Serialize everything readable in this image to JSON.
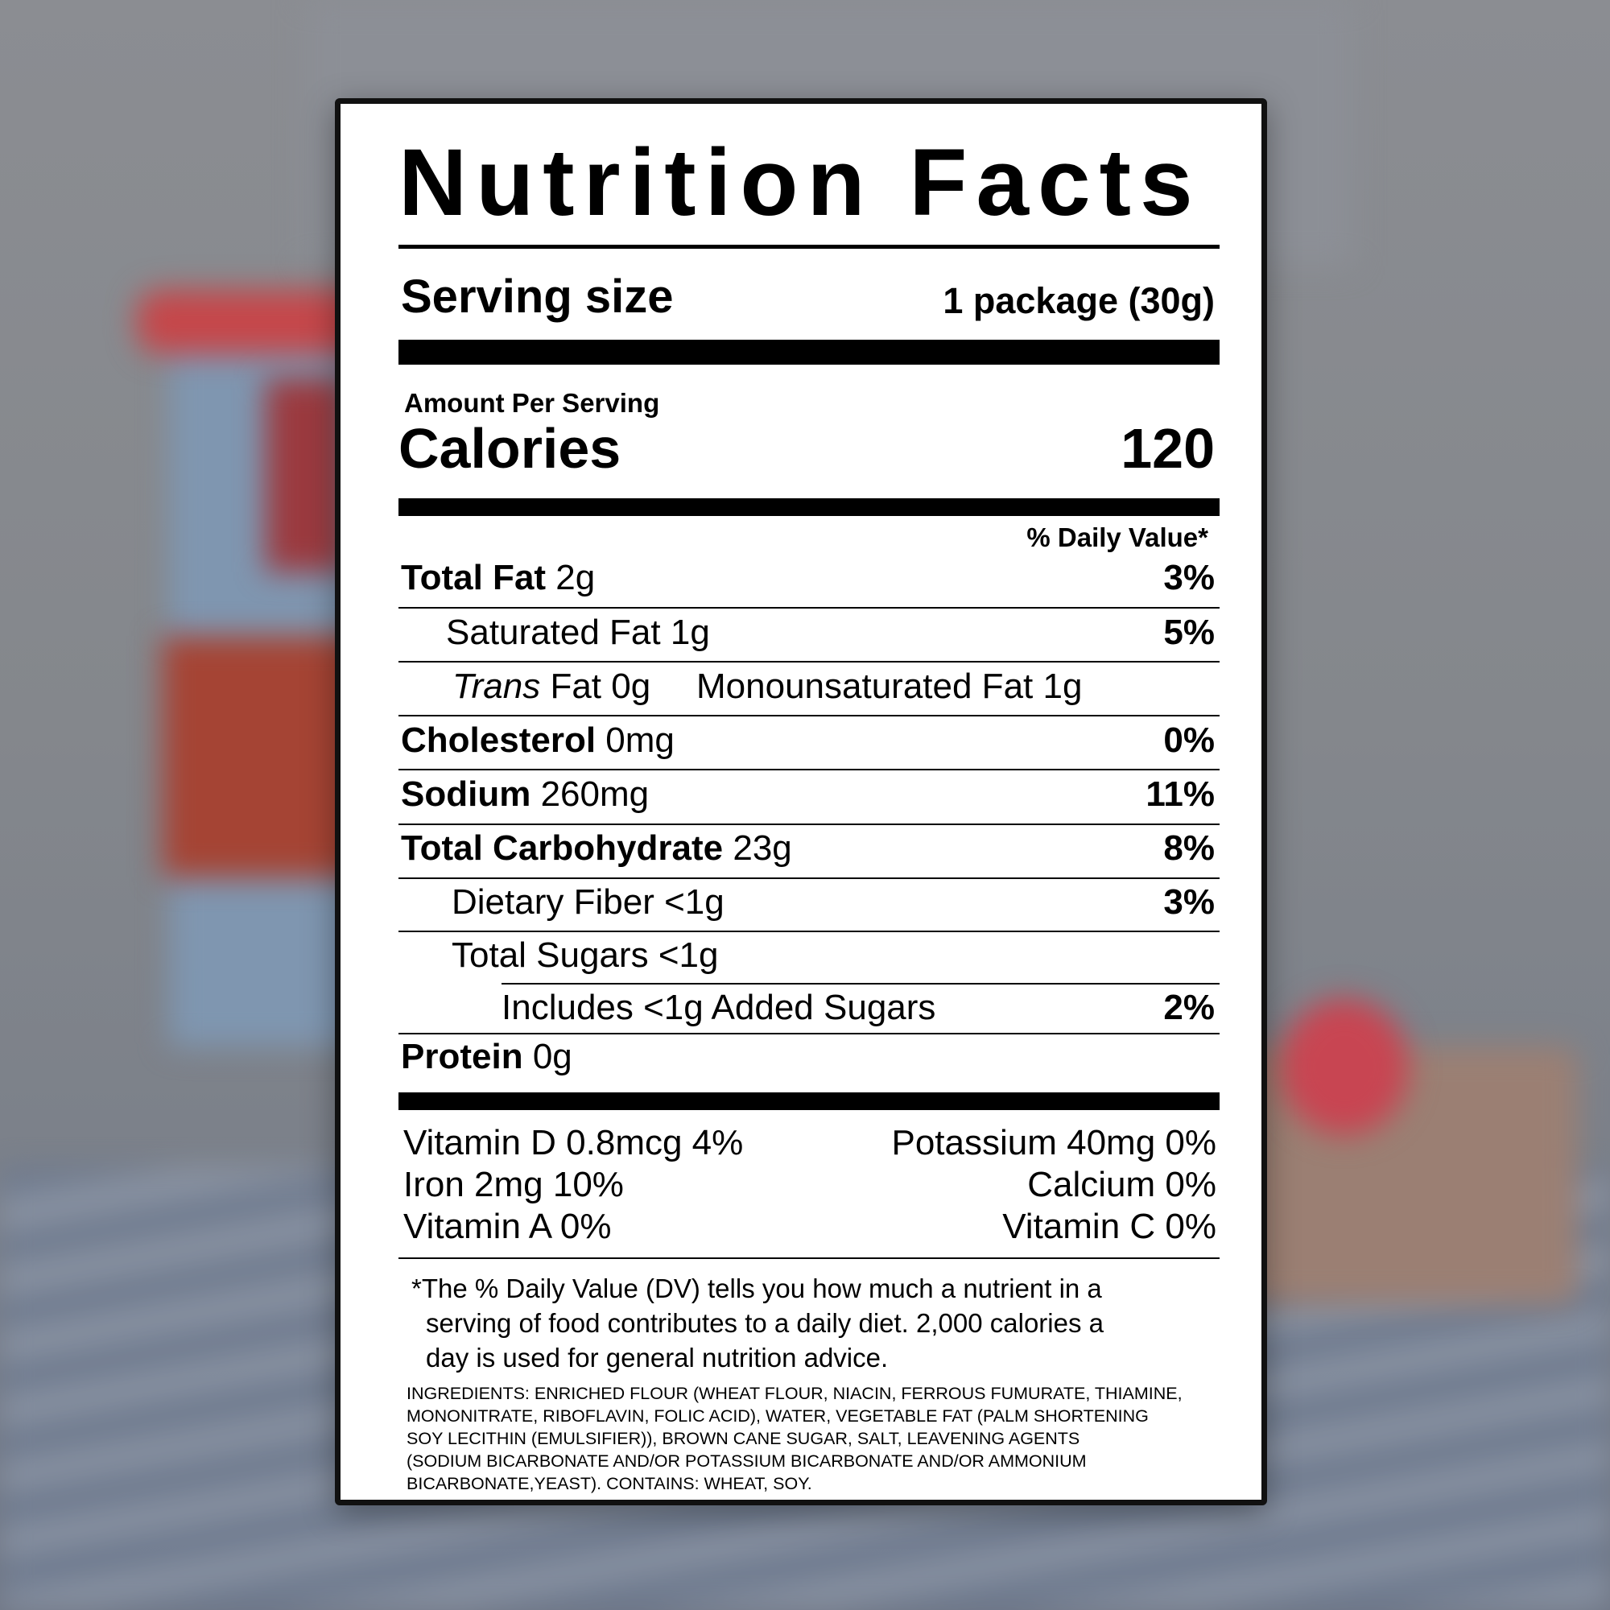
{
  "label": {
    "title": "Nutrition Facts",
    "serving_size_label": "Serving size",
    "serving_size_value": "1 package (30g)",
    "amount_per_serving": "Amount Per Serving",
    "calories_label": "Calories",
    "calories_value": "120",
    "daily_value_header": "% Daily Value*",
    "nutrients": [
      {
        "name": "Total Fat",
        "amount": "2g",
        "dv": "3%"
      },
      {
        "name": "Saturated Fat",
        "amount": "1g",
        "dv": "5%"
      },
      {
        "name": "Trans",
        "suffix": "Fat 0g",
        "extra": "Monounsaturated Fat 1g"
      },
      {
        "name": "Cholesterol",
        "amount": "0mg",
        "dv": "0%"
      },
      {
        "name": "Sodium",
        "amount": "260mg",
        "dv": "11%"
      },
      {
        "name": "Total Carbohydrate",
        "amount": "23g",
        "dv": "8%"
      },
      {
        "name": "Dietary Fiber",
        "amount": "<1g",
        "dv": "3%"
      },
      {
        "name": "Total Sugars",
        "amount": "<1g"
      },
      {
        "name": "Includes <1g Added Sugars",
        "dv": "2%"
      },
      {
        "name": "Protein",
        "amount": "0g"
      }
    ],
    "vitamins": [
      {
        "left": "Vitamin D 0.8mcg 4%",
        "right": "Potassium 40mg 0%"
      },
      {
        "left": "Iron 2mg 10%",
        "right": "Calcium 0%"
      },
      {
        "left": "Vitamin A 0%",
        "right": "Vitamin C 0%"
      }
    ],
    "footnote": [
      "*The % Daily Value (DV) tells you how much a nutrient in a",
      "serving of food contributes to a daily diet. 2,000 calories a",
      "day is used for general nutrition advice."
    ],
    "ingredients": [
      "INGREDIENTS: ENRICHED FLOUR (WHEAT FLOUR, NIACIN, FERROUS FUMURATE, THIAMINE,",
      "MONONITRATE, RIBOFLAVIN, FOLIC ACID), WATER, VEGETABLE FAT (PALM SHORTENING",
      "SOY LECITHIN (EMULSIFIER)), BROWN CANE SUGAR, SALT, LEAVENING AGENTS",
      "(SODIUM BICARBONATE AND/OR POTASSIUM BICARBONATE AND/OR AMMONIUM",
      "BICARBONATE,YEAST).  CONTAINS: WHEAT, SOY."
    ]
  }
}
